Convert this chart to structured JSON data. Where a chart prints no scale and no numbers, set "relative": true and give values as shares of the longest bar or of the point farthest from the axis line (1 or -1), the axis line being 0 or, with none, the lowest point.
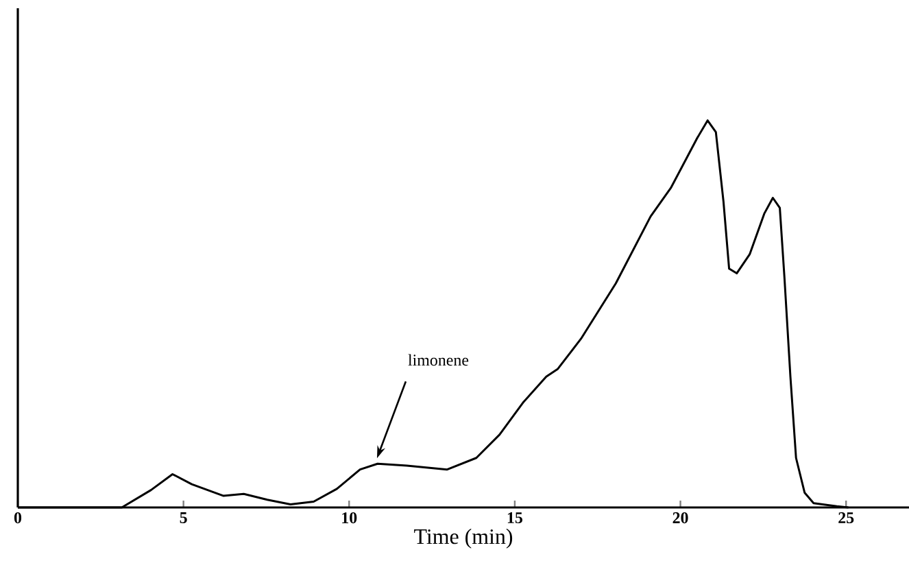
{
  "chart_data": {
    "type": "line",
    "relative": true,
    "xlabel": "Time (min)",
    "xlim": [
      0,
      26.9
    ],
    "xticks": [
      0,
      5,
      10,
      15,
      20,
      25
    ],
    "annotations": [
      {
        "text": "limonene",
        "x": 10.8,
        "y": 0.12
      }
    ],
    "marker": "none",
    "line_style": "solid",
    "series": [
      {
        "color": "#000000",
        "x": [
          0,
          3.14,
          4.02,
          4.67,
          5.25,
          6.21,
          6.82,
          7.53,
          8.23,
          8.93,
          9.63,
          10.33,
          10.86,
          11.74,
          12.96,
          13.84,
          14.54,
          15.25,
          15.95,
          16.3,
          17.0,
          18.05,
          19.1,
          19.72,
          20.51,
          20.82,
          21.07,
          21.3,
          21.47,
          21.7,
          22.09,
          22.53,
          22.79,
          23.0,
          23.14,
          23.32,
          23.49,
          23.75,
          24.02,
          24.72,
          25.07
        ],
        "values": [
          0,
          0,
          0.045,
          0.086,
          0.06,
          0.03,
          0.035,
          0.02,
          0.008,
          0.015,
          0.048,
          0.098,
          0.113,
          0.108,
          0.098,
          0.128,
          0.188,
          0.271,
          0.338,
          0.358,
          0.436,
          0.579,
          0.752,
          0.827,
          0.955,
          1.0,
          0.97,
          0.79,
          0.617,
          0.605,
          0.654,
          0.759,
          0.8,
          0.774,
          0.594,
          0.338,
          0.128,
          0.038,
          0.011,
          0.003,
          0
        ]
      }
    ]
  }
}
